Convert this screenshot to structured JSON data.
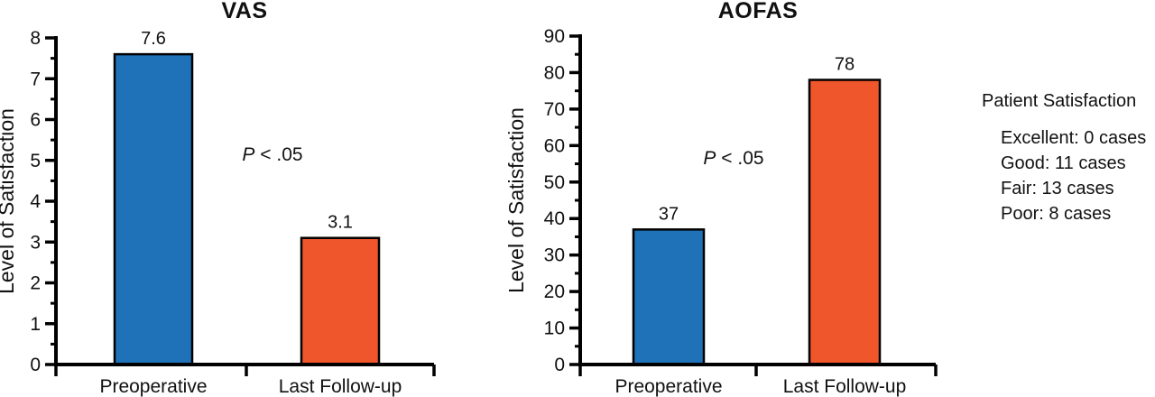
{
  "patient_satisfaction": {
    "title": "Patient Satisfaction",
    "items": [
      "Excellent: 0 cases",
      "Good: 11 cases",
      "Fair: 13 cases",
      "Poor: 8 cases"
    ]
  },
  "colors": {
    "preoperative_bar": "#1F72B8",
    "last_followup_bar": "#F0562B",
    "axis": "#000000",
    "text": "#111111",
    "background": "#FFFFFF"
  },
  "chart_data": [
    {
      "type": "bar",
      "title": "VAS",
      "xlabel": "",
      "ylabel": "Level of Satisfaction",
      "categories": [
        "Preoperative",
        "Last Follow-up"
      ],
      "values": [
        7.6,
        3.1
      ],
      "bar_labels": [
        "7.6",
        "3.1"
      ],
      "bar_colors": [
        "#1F72B8",
        "#F0562B"
      ],
      "annotation": "P < .05",
      "ylim": [
        0,
        8
      ],
      "ytick_step": 1,
      "minor_tick_step": 0.5,
      "grid": false,
      "legend_position": "none"
    },
    {
      "type": "bar",
      "title": "AOFAS",
      "xlabel": "",
      "ylabel": "Level of Satisfaction",
      "categories": [
        "Preoperative",
        "Last Follow-up"
      ],
      "values": [
        37,
        78
      ],
      "bar_labels": [
        "37",
        "78"
      ],
      "bar_colors": [
        "#1F72B8",
        "#F0562B"
      ],
      "annotation": "P < .05",
      "ylim": [
        0,
        90
      ],
      "ytick_step": 10,
      "minor_tick_step": 5,
      "grid": false,
      "legend_position": "none"
    }
  ]
}
